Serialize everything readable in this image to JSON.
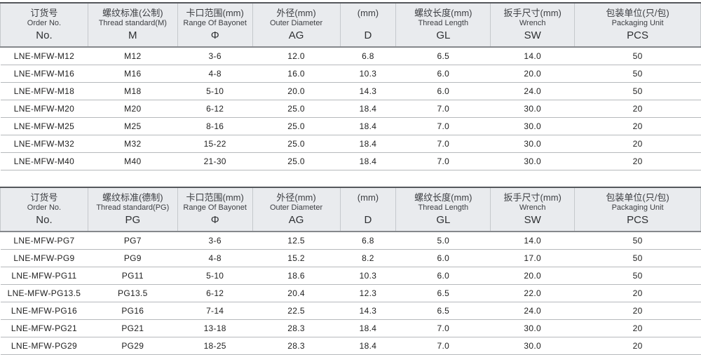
{
  "colors": {
    "header_bg": "#e9ebee",
    "top_border": "#55585c",
    "header_underline": "#85888c",
    "row_divider": "#b6b9bc",
    "text": "#1f1f1f"
  },
  "tables": [
    {
      "id": "metric",
      "columns": [
        {
          "zh": "订货号",
          "en": "Order No.",
          "symbol": "No."
        },
        {
          "zh": "螺纹标准(公制)",
          "en": "Thread standard(M)",
          "symbol": "M"
        },
        {
          "zh": "卡口范围(mm)",
          "en": "Range Of Bayonet",
          "symbol": "Φ"
        },
        {
          "zh": "外径(mm)",
          "en": "Outer Diameter",
          "symbol": "AG"
        },
        {
          "zh": "(mm)",
          "en": "",
          "symbol": "D"
        },
        {
          "zh": "螺纹长度(mm)",
          "en": "Thread Length",
          "symbol": "GL"
        },
        {
          "zh": "扳手尺寸(mm)",
          "en": "Wrench",
          "symbol": "SW"
        },
        {
          "zh": "包装单位(只/包)",
          "en": "Packaging Unit",
          "symbol": "PCS"
        }
      ],
      "rows": [
        [
          "LNE-MFW-M12",
          "M12",
          "3-6",
          "12.0",
          "6.8",
          "6.5",
          "14.0",
          "50"
        ],
        [
          "LNE-MFW-M16",
          "M16",
          "4-8",
          "16.0",
          "10.3",
          "6.0",
          "20.0",
          "50"
        ],
        [
          "LNE-MFW-M18",
          "M18",
          "5-10",
          "20.0",
          "14.3",
          "6.0",
          "24.0",
          "50"
        ],
        [
          "LNE-MFW-M20",
          "M20",
          "6-12",
          "25.0",
          "18.4",
          "7.0",
          "30.0",
          "20"
        ],
        [
          "LNE-MFW-M25",
          "M25",
          "8-16",
          "25.0",
          "18.4",
          "7.0",
          "30.0",
          "20"
        ],
        [
          "LNE-MFW-M32",
          "M32",
          "15-22",
          "25.0",
          "18.4",
          "7.0",
          "30.0",
          "20"
        ],
        [
          "LNE-MFW-M40",
          "M40",
          "21-30",
          "25.0",
          "18.4",
          "7.0",
          "30.0",
          "20"
        ]
      ]
    },
    {
      "id": "pg",
      "columns": [
        {
          "zh": "订货号",
          "en": "Order No.",
          "symbol": "No."
        },
        {
          "zh": "螺纹标准(德制)",
          "en": "Thread standard(PG)",
          "symbol": "PG"
        },
        {
          "zh": "卡口范围(mm)",
          "en": "Range Of Bayonet",
          "symbol": "Φ"
        },
        {
          "zh": "外径(mm)",
          "en": "Outer Diameter",
          "symbol": "AG"
        },
        {
          "zh": "(mm)",
          "en": "",
          "symbol": "D"
        },
        {
          "zh": "螺纹长度(mm)",
          "en": "Thread Length",
          "symbol": "GL"
        },
        {
          "zh": "扳手尺寸(mm)",
          "en": "Wrench",
          "symbol": "SW"
        },
        {
          "zh": "包装单位(只/包)",
          "en": "Packaging Unit",
          "symbol": "PCS"
        }
      ],
      "rows": [
        [
          "LNE-MFW-PG7",
          "PG7",
          "3-6",
          "12.5",
          "6.8",
          "5.0",
          "14.0",
          "50"
        ],
        [
          "LNE-MFW-PG9",
          "PG9",
          "4-8",
          "15.2",
          "8.2",
          "6.0",
          "17.0",
          "50"
        ],
        [
          "LNE-MFW-PG11",
          "PG11",
          "5-10",
          "18.6",
          "10.3",
          "6.0",
          "20.0",
          "50"
        ],
        [
          "LNE-MFW-PG13.5",
          "PG13.5",
          "6-12",
          "20.4",
          "12.3",
          "6.5",
          "22.0",
          "20"
        ],
        [
          "LNE-MFW-PG16",
          "PG16",
          "7-14",
          "22.5",
          "14.3",
          "6.5",
          "24.0",
          "20"
        ],
        [
          "LNE-MFW-PG21",
          "PG21",
          "13-18",
          "28.3",
          "18.4",
          "7.0",
          "30.0",
          "20"
        ],
        [
          "LNE-MFW-PG29",
          "PG29",
          "18-25",
          "28.3",
          "18.4",
          "7.0",
          "30.0",
          "20"
        ]
      ]
    }
  ]
}
